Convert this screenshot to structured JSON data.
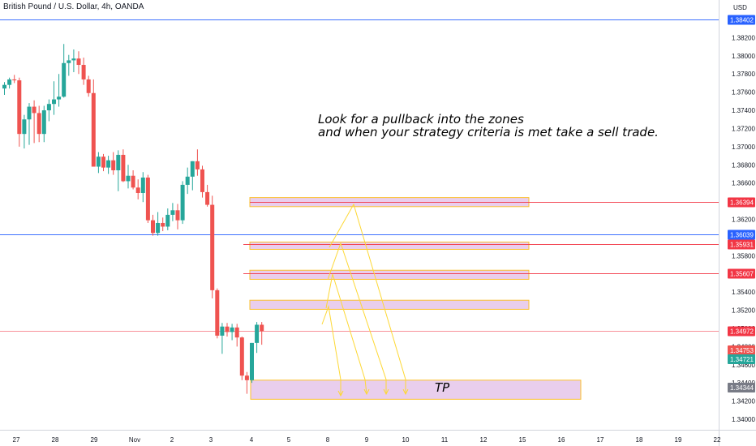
{
  "header": {
    "title": "British Pound / U.S. Dollar, 4h, OANDA",
    "currency": "USD"
  },
  "annotations": {
    "line1": "Look for a pullback into the zones",
    "line2": "and when your strategy criteria is met take a sell trade.",
    "tp_label": "TP"
  },
  "colors": {
    "up": "#26a69a",
    "down": "#ef5350",
    "zone_fill": "#e1bee7",
    "zone_border": "#fbc02d",
    "line_blue": "#2962ff",
    "line_red": "#f23645",
    "arrows": "#fff176"
  },
  "chart_data": {
    "type": "candlestick",
    "title": "British Pound / U.S. Dollar, 4h, OANDA",
    "ylim": [
      1.3396,
      1.3857
    ],
    "y_ticks": [
      "1.34000",
      "1.34200",
      "1.34400",
      "1.34600",
      "1.34800",
      "1.35000",
      "1.35200",
      "1.35400",
      "1.35600",
      "1.35800",
      "1.36000",
      "1.36200",
      "1.36400",
      "1.36600",
      "1.36800",
      "1.37000",
      "1.37200",
      "1.37400",
      "1.37600",
      "1.37800",
      "1.38000",
      "1.38200",
      "1.38400"
    ],
    "x_ticks": [
      "27",
      "28",
      "29",
      "Nov",
      "2",
      "3",
      "4",
      "5",
      "8",
      "9",
      "10",
      "11",
      "12",
      "15",
      "16",
      "17",
      "18",
      "19",
      "22"
    ],
    "candles": [
      {
        "o": 1.3764,
        "h": 1.3771,
        "l": 1.3757,
        "c": 1.3768
      },
      {
        "o": 1.3768,
        "h": 1.3776,
        "l": 1.3764,
        "c": 1.3774
      },
      {
        "o": 1.3774,
        "h": 1.3779,
        "l": 1.377,
        "c": 1.3773
      },
      {
        "o": 1.3773,
        "h": 1.3776,
        "l": 1.37,
        "c": 1.3714
      },
      {
        "o": 1.3714,
        "h": 1.3735,
        "l": 1.3698,
        "c": 1.373
      },
      {
        "o": 1.373,
        "h": 1.3748,
        "l": 1.3702,
        "c": 1.3744
      },
      {
        "o": 1.3744,
        "h": 1.3751,
        "l": 1.3704,
        "c": 1.3737
      },
      {
        "o": 1.3737,
        "h": 1.3745,
        "l": 1.3705,
        "c": 1.3714
      },
      {
        "o": 1.3714,
        "h": 1.3745,
        "l": 1.3705,
        "c": 1.374
      },
      {
        "o": 1.374,
        "h": 1.3752,
        "l": 1.3728,
        "c": 1.3747
      },
      {
        "o": 1.3747,
        "h": 1.3772,
        "l": 1.3735,
        "c": 1.3752
      },
      {
        "o": 1.3752,
        "h": 1.378,
        "l": 1.3744,
        "c": 1.3755
      },
      {
        "o": 1.3755,
        "h": 1.3813,
        "l": 1.3754,
        "c": 1.3792
      },
      {
        "o": 1.3792,
        "h": 1.3801,
        "l": 1.3778,
        "c": 1.3795
      },
      {
        "o": 1.3795,
        "h": 1.3807,
        "l": 1.3782,
        "c": 1.3797
      },
      {
        "o": 1.3797,
        "h": 1.3805,
        "l": 1.378,
        "c": 1.379
      },
      {
        "o": 1.379,
        "h": 1.3798,
        "l": 1.3768,
        "c": 1.3774
      },
      {
        "o": 1.3774,
        "h": 1.3778,
        "l": 1.3755,
        "c": 1.3759
      },
      {
        "o": 1.3759,
        "h": 1.3774,
        "l": 1.3678,
        "c": 1.3678
      },
      {
        "o": 1.3678,
        "h": 1.3694,
        "l": 1.3671,
        "c": 1.3689
      },
      {
        "o": 1.3689,
        "h": 1.3692,
        "l": 1.3673,
        "c": 1.3677
      },
      {
        "o": 1.3677,
        "h": 1.369,
        "l": 1.367,
        "c": 1.3685
      },
      {
        "o": 1.3685,
        "h": 1.3694,
        "l": 1.3669,
        "c": 1.3674
      },
      {
        "o": 1.3674,
        "h": 1.3696,
        "l": 1.3651,
        "c": 1.3691
      },
      {
        "o": 1.3691,
        "h": 1.3697,
        "l": 1.3661,
        "c": 1.3662
      },
      {
        "o": 1.3662,
        "h": 1.368,
        "l": 1.3654,
        "c": 1.3668
      },
      {
        "o": 1.3668,
        "h": 1.3674,
        "l": 1.3653,
        "c": 1.3655
      },
      {
        "o": 1.3655,
        "h": 1.3664,
        "l": 1.3642,
        "c": 1.3649
      },
      {
        "o": 1.3649,
        "h": 1.3672,
        "l": 1.3639,
        "c": 1.3666
      },
      {
        "o": 1.3666,
        "h": 1.3669,
        "l": 1.3616,
        "c": 1.3619
      },
      {
        "o": 1.3619,
        "h": 1.3625,
        "l": 1.3602,
        "c": 1.3605
      },
      {
        "o": 1.3605,
        "h": 1.3628,
        "l": 1.3602,
        "c": 1.3616
      },
      {
        "o": 1.3616,
        "h": 1.3622,
        "l": 1.3607,
        "c": 1.3612
      },
      {
        "o": 1.3612,
        "h": 1.3632,
        "l": 1.3608,
        "c": 1.3625
      },
      {
        "o": 1.3625,
        "h": 1.3638,
        "l": 1.3618,
        "c": 1.363
      },
      {
        "o": 1.363,
        "h": 1.3637,
        "l": 1.3609,
        "c": 1.3619
      },
      {
        "o": 1.3619,
        "h": 1.3662,
        "l": 1.3615,
        "c": 1.3658
      },
      {
        "o": 1.3658,
        "h": 1.3677,
        "l": 1.3648,
        "c": 1.3667
      },
      {
        "o": 1.3667,
        "h": 1.3684,
        "l": 1.3652,
        "c": 1.3684
      },
      {
        "o": 1.3684,
        "h": 1.3697,
        "l": 1.3668,
        "c": 1.3675
      },
      {
        "o": 1.3675,
        "h": 1.3679,
        "l": 1.3644,
        "c": 1.365
      },
      {
        "o": 1.365,
        "h": 1.3658,
        "l": 1.3634,
        "c": 1.3636
      },
      {
        "o": 1.3636,
        "h": 1.3646,
        "l": 1.3533,
        "c": 1.3542
      },
      {
        "o": 1.3542,
        "h": 1.3544,
        "l": 1.3489,
        "c": 1.3492
      },
      {
        "o": 1.3492,
        "h": 1.3506,
        "l": 1.3472,
        "c": 1.3502
      },
      {
        "o": 1.3502,
        "h": 1.3506,
        "l": 1.3491,
        "c": 1.3496
      },
      {
        "o": 1.3496,
        "h": 1.3505,
        "l": 1.3487,
        "c": 1.3501
      },
      {
        "o": 1.3501,
        "h": 1.3505,
        "l": 1.348,
        "c": 1.349
      },
      {
        "o": 1.349,
        "h": 1.3491,
        "l": 1.3443,
        "c": 1.3448
      },
      {
        "o": 1.3448,
        "h": 1.3452,
        "l": 1.3428,
        "c": 1.3443
      },
      {
        "o": 1.3443,
        "h": 1.3484,
        "l": 1.344,
        "c": 1.3484
      },
      {
        "o": 1.3484,
        "h": 1.3507,
        "l": 1.3473,
        "c": 1.3504
      },
      {
        "o": 1.3504,
        "h": 1.3507,
        "l": 1.3482,
        "c": 1.3497
      }
    ],
    "horizontal_lines": [
      {
        "price": 1.38402,
        "label": "1.38402",
        "color": "#2962ff"
      },
      {
        "price": 1.36394,
        "label": "1.36394",
        "color": "#f23645"
      },
      {
        "price": 1.36039,
        "label": "1.36039",
        "color": "#2962ff"
      },
      {
        "price": 1.35931,
        "label": "1.35931",
        "color": "#f23645"
      },
      {
        "price": 1.35607,
        "label": "1.35607",
        "color": "#f23645"
      },
      {
        "price": 1.34972,
        "label": "1.34972",
        "color": "#f23645"
      }
    ],
    "price_badges": [
      {
        "price": 1.34753,
        "label": "1.34753",
        "color": "#ef5350"
      },
      {
        "price": 1.34721,
        "label": "1.34721",
        "color": "#26a69a"
      },
      {
        "price": 1.34344,
        "label": "1.34344",
        "color": "#787b86"
      }
    ],
    "zones": [
      {
        "top": 1.3644,
        "bottom": 1.3634
      },
      {
        "top": 1.3595,
        "bottom": 1.3587
      },
      {
        "top": 1.3564,
        "bottom": 1.3554
      },
      {
        "top": 1.3531,
        "bottom": 1.3521
      },
      {
        "top": 1.3443,
        "bottom": 1.3422
      }
    ]
  }
}
